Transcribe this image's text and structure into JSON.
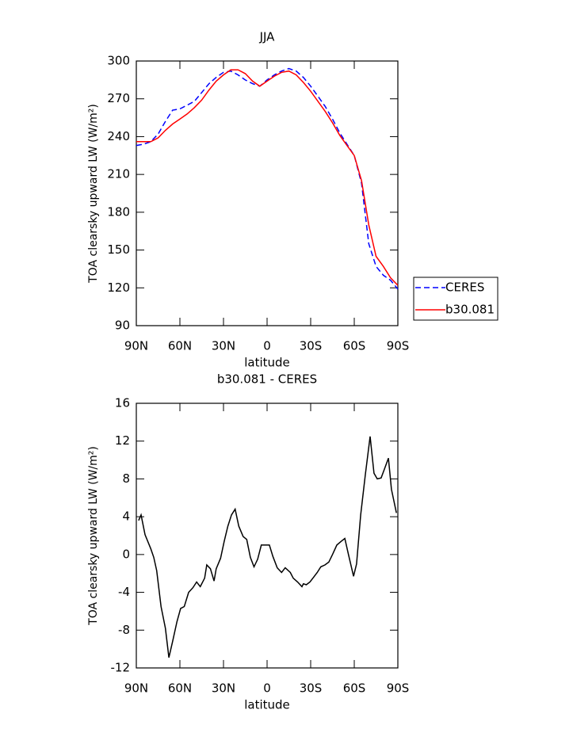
{
  "chart_data": [
    {
      "type": "line",
      "title": "JJA",
      "x_label": "latitude",
      "y_label": "TOA clearsky upward LW (W/m²)",
      "x": [
        90,
        85,
        80,
        75,
        70,
        65,
        60,
        55,
        50,
        45,
        40,
        35,
        30,
        25,
        20,
        15,
        10,
        5,
        0,
        -5,
        -10,
        -15,
        -20,
        -25,
        -30,
        -35,
        -40,
        -45,
        -50,
        -55,
        -60,
        -65,
        -70,
        -75,
        -80,
        -85,
        -90
      ],
      "series": [
        {
          "name": "CERES",
          "color": "#0000ff",
          "line_style": "dashed",
          "values": [
            233,
            234,
            236,
            242,
            252,
            261,
            262,
            265,
            268,
            275,
            282,
            287,
            291,
            292,
            289,
            285,
            282,
            280,
            285,
            289,
            292,
            294,
            292,
            287,
            280,
            272,
            264,
            254,
            243,
            234,
            225,
            203,
            155,
            137,
            130,
            126,
            119
          ]
        },
        {
          "name": "b30.081",
          "color": "#ff0000",
          "line_style": "solid",
          "values": [
            236,
            236,
            236,
            239,
            245,
            250,
            254,
            258,
            263,
            269,
            277,
            284,
            289,
            293,
            293,
            290,
            284,
            280,
            284,
            288,
            291,
            292,
            289,
            283,
            276,
            268,
            260,
            251,
            241,
            233,
            225,
            205,
            170,
            145,
            137,
            128,
            122
          ]
        }
      ],
      "xlim": [
        90,
        -90
      ],
      "xticks": [
        {
          "value": 90,
          "label": "90N"
        },
        {
          "value": 60,
          "label": "60N"
        },
        {
          "value": 30,
          "label": "30N"
        },
        0,
        {
          "value": -30,
          "label": "30S"
        },
        {
          "value": -60,
          "label": "60S"
        },
        {
          "value": -90,
          "label": "90S"
        }
      ],
      "ylim": [
        90,
        300
      ],
      "yticks": [
        90,
        120,
        150,
        180,
        210,
        240,
        270,
        300
      ],
      "legend": "right"
    },
    {
      "type": "line",
      "title": "b30.081 - CERES",
      "x_label": "latitude",
      "y_label": "TOA clearsky upward LW (W/m²)",
      "x": [
        88.4,
        86.7,
        84,
        80,
        78,
        76,
        73,
        70,
        67.6,
        65,
        62,
        59.5,
        57,
        54,
        51,
        48.5,
        46,
        43,
        41.5,
        39,
        36.5,
        35,
        32,
        29.5,
        27,
        24.5,
        22,
        19.5,
        16.5,
        14,
        11.5,
        9,
        6.5,
        4,
        0.5,
        -1.6,
        -4,
        -7,
        -10,
        -12.5,
        -16,
        -18,
        -21,
        -24,
        -25,
        -27,
        -29.5,
        -31.5,
        -34.5,
        -37,
        -39.8,
        -42.5,
        -45,
        -48,
        -51,
        -53.5,
        -56,
        -59.5,
        -61.6,
        -64.4,
        -67.6,
        -70.9,
        -73.6,
        -75.8,
        -78.5,
        -80.7,
        -83.5,
        -85.6,
        -89
      ],
      "values": [
        3.6,
        4.2,
        2.1,
        0.6,
        -0.3,
        -1.7,
        -5.5,
        -7.8,
        -10.9,
        -9.2,
        -7.1,
        -5.7,
        -5.5,
        -4,
        -3.5,
        -2.9,
        -3.4,
        -2.5,
        -1.1,
        -1.5,
        -2.8,
        -1.5,
        -0.4,
        1.4,
        3,
        4.2,
        4.8,
        3,
        1.9,
        1.6,
        -0.3,
        -1.3,
        -0.5,
        1,
        1,
        1,
        -0.2,
        -1.4,
        -1.9,
        -1.4,
        -1.9,
        -2.5,
        -2.9,
        -3.4,
        -3.1,
        -3.2,
        -2.9,
        -2.5,
        -1.9,
        -1.3,
        -1.1,
        -0.8,
        0,
        1,
        1.4,
        1.7,
        0,
        -2.3,
        -1,
        4.2,
        8.4,
        12.5,
        8.6,
        8,
        8.1,
        9,
        10.2,
        6.9,
        4.4
      ],
      "color": "#000000",
      "xlim": [
        90,
        -90
      ],
      "xticks": [
        {
          "value": 90,
          "label": "90N"
        },
        {
          "value": 60,
          "label": "60N"
        },
        {
          "value": 30,
          "label": "30N"
        },
        0,
        {
          "value": -30,
          "label": "30S"
        },
        {
          "value": -60,
          "label": "60S"
        },
        {
          "value": -90,
          "label": "90S"
        }
      ],
      "ylim": [
        -12,
        16
      ],
      "yticks": [
        -12,
        -8,
        -4,
        0,
        4,
        8,
        12,
        16
      ]
    }
  ]
}
